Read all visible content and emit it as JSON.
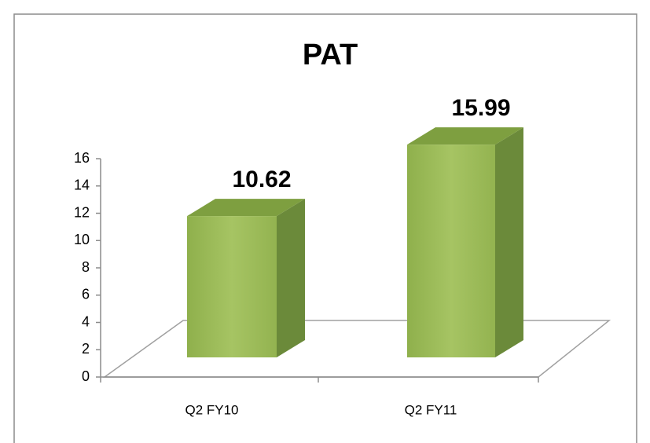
{
  "chart_data": {
    "type": "bar3d",
    "title": "PAT",
    "categories": [
      "Q2 FY10",
      "Q2 FY11"
    ],
    "values": [
      10.62,
      15.99
    ],
    "color": "#9bbb59",
    "ylim": [
      0,
      16
    ],
    "yticks": [
      0,
      2,
      4,
      6,
      8,
      10,
      12,
      14,
      16
    ]
  }
}
